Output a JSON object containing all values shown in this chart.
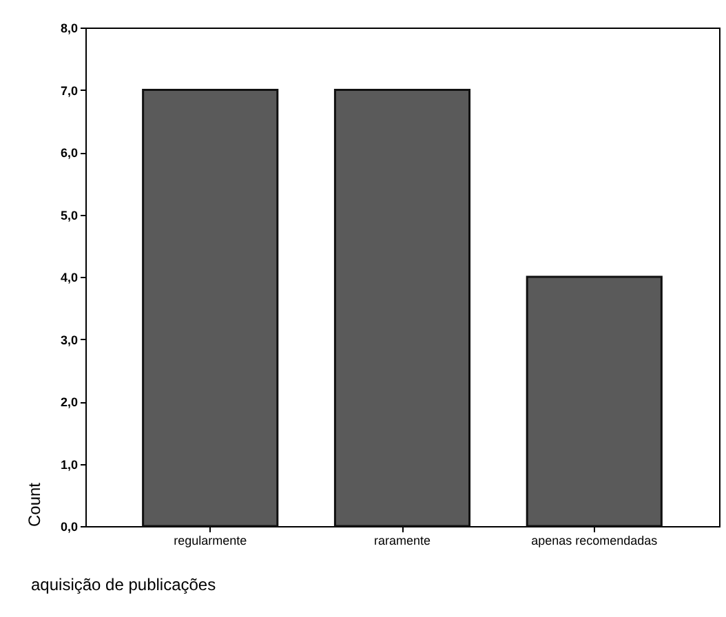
{
  "chart_data": {
    "type": "bar",
    "xlabel": "aquisição de publicações",
    "ylabel": "Count",
    "categories": [
      "regularmente",
      "raramente",
      "apenas recomendadas"
    ],
    "values": [
      7,
      7,
      4
    ],
    "color": "#5a5a5a",
    "ylim": [
      0,
      8
    ],
    "yticks": [
      {
        "value": 0,
        "label": "0,0"
      },
      {
        "value": 1,
        "label": "1,0"
      },
      {
        "value": 2,
        "label": "2,0"
      },
      {
        "value": 3,
        "label": "3,0"
      },
      {
        "value": 4,
        "label": "4,0"
      },
      {
        "value": 5,
        "label": "5,0"
      },
      {
        "value": 6,
        "label": "6,0"
      },
      {
        "value": 7,
        "label": "7,0"
      },
      {
        "value": 8,
        "label": "8,0"
      }
    ],
    "grid": false
  }
}
